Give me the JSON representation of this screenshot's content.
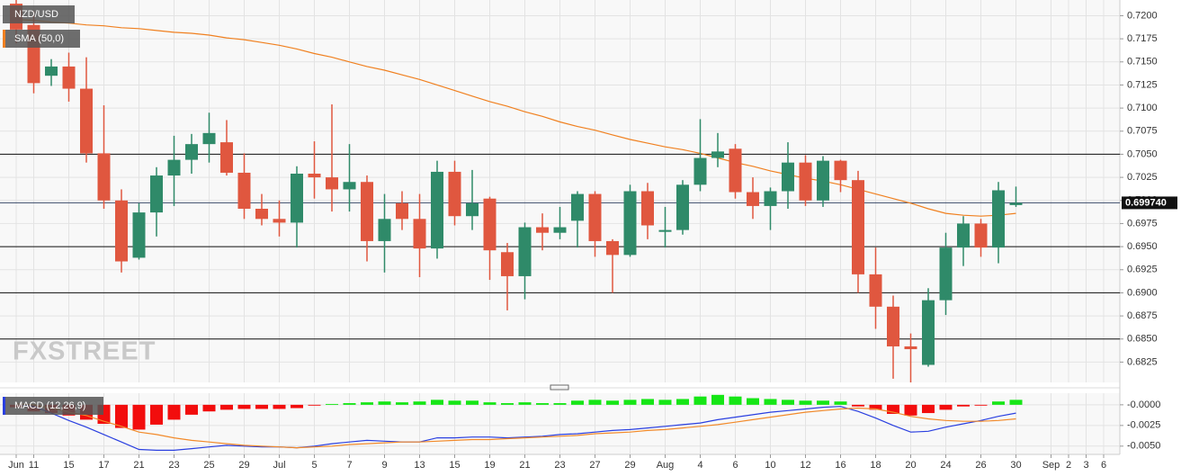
{
  "chart_data": [
    {
      "type": "candlestick",
      "name": "NZD/USD",
      "categories": [
        "Jun",
        "11",
        null,
        "15",
        null,
        "17",
        null,
        "21",
        null,
        "23",
        null,
        "25",
        null,
        "29",
        null,
        "Jul",
        null,
        "5",
        null,
        "7",
        null,
        "9",
        null,
        "13",
        null,
        "15",
        null,
        "19",
        null,
        "21",
        null,
        "23",
        null,
        "27",
        null,
        "29",
        null,
        "Aug",
        null,
        "4",
        null,
        "6",
        null,
        "10",
        null,
        "12",
        null,
        "16",
        null,
        "18",
        null,
        "20",
        null,
        "24",
        null,
        "26",
        null,
        "30",
        null,
        "Sep",
        "2",
        "3",
        "6"
      ],
      "open": [
        0.7213,
        0.719,
        0.7135,
        0.7145,
        0.7121,
        0.7051,
        0.7,
        0.6938,
        0.6987,
        0.7027,
        0.7044,
        0.7061,
        0.7063,
        0.703,
        0.6991,
        0.698,
        0.6976,
        0.7029,
        0.7025,
        0.7012,
        0.702,
        0.6956,
        0.6997,
        0.698,
        0.6948,
        0.7031,
        0.6983,
        0.7002,
        0.6944,
        0.6918,
        0.6971,
        0.6965,
        0.6978,
        0.7007,
        0.6956,
        0.6941,
        0.701,
        0.6966,
        0.6968,
        0.7017,
        0.7046,
        0.7056,
        0.7009,
        0.6994,
        0.701,
        0.7041,
        0.7,
        0.7043,
        0.7022,
        0.692,
        0.6885,
        0.6842,
        0.6822,
        0.6892,
        0.6949,
        0.6975,
        0.6949,
        0.6995,
        null,
        null,
        null,
        null,
        null
      ],
      "high": [
        0.7217,
        0.7205,
        0.7153,
        0.716,
        0.7155,
        0.7103,
        0.7012,
        0.6997,
        0.7036,
        0.707,
        0.7072,
        0.7095,
        0.7087,
        0.7051,
        0.7007,
        0.7,
        0.7037,
        0.7064,
        0.7104,
        0.7061,
        0.7027,
        0.7007,
        0.701,
        0.7007,
        0.7043,
        0.7043,
        0.7033,
        0.7004,
        0.6954,
        0.6976,
        0.6986,
        0.6993,
        0.701,
        0.701,
        0.6958,
        0.7017,
        0.7019,
        0.6993,
        0.7022,
        0.7088,
        0.7073,
        0.7061,
        0.7025,
        0.7014,
        0.7063,
        0.7049,
        0.7048,
        0.7044,
        0.7032,
        0.6949,
        0.6897,
        0.6856,
        0.6905,
        0.6965,
        0.6983,
        0.698,
        0.702,
        0.7015,
        null,
        null,
        null,
        null,
        null
      ],
      "low": [
        0.717,
        0.7116,
        0.7124,
        0.7107,
        0.7041,
        0.6991,
        0.6922,
        0.6936,
        0.6961,
        0.6994,
        0.7029,
        0.7041,
        0.7027,
        0.698,
        0.6973,
        0.6961,
        0.6949,
        0.7002,
        0.6988,
        0.6988,
        0.6934,
        0.6922,
        0.6968,
        0.6917,
        0.6937,
        0.6973,
        0.6968,
        0.6914,
        0.6881,
        0.6893,
        0.6946,
        0.6958,
        0.6949,
        0.6939,
        0.69,
        0.6939,
        0.6958,
        0.6949,
        0.6963,
        0.701,
        0.7036,
        0.7002,
        0.698,
        0.6968,
        0.6991,
        0.6994,
        0.6993,
        0.7009,
        0.69,
        0.6861,
        0.6807,
        0.6803,
        0.682,
        0.6876,
        0.6929,
        0.6939,
        0.6932,
        0.6993,
        null,
        null,
        null,
        null,
        null
      ],
      "close": [
        0.7185,
        0.7127,
        0.7145,
        0.7121,
        0.7051,
        0.7,
        0.6934,
        0.6987,
        0.7027,
        0.7044,
        0.7061,
        0.7073,
        0.703,
        0.6991,
        0.698,
        0.6976,
        0.7029,
        0.7025,
        0.7012,
        0.702,
        0.6956,
        0.698,
        0.698,
        0.6948,
        0.7031,
        0.6983,
        0.6997,
        0.6946,
        0.6918,
        0.6971,
        0.6965,
        0.6971,
        0.7007,
        0.6956,
        0.6941,
        0.701,
        0.6973,
        0.6968,
        0.7017,
        0.7046,
        0.7053,
        0.7009,
        0.6994,
        0.701,
        0.7041,
        0.7,
        0.7043,
        0.7022,
        0.692,
        0.6885,
        0.6842,
        0.6839,
        0.6892,
        0.6949,
        0.6975,
        0.6949,
        0.7011,
        0.69974,
        null,
        null,
        null,
        null,
        null
      ],
      "up_color": "#2f8a69",
      "down_color": "#e0573f",
      "overlay": {
        "name": "SMA (50,0)",
        "color": "#f08020",
        "values": [
          0.7196,
          0.7195,
          0.7193,
          0.7192,
          0.719,
          0.7189,
          0.7187,
          0.7186,
          0.7184,
          0.7182,
          0.7181,
          0.7179,
          0.7176,
          0.7174,
          0.7171,
          0.7168,
          0.7164,
          0.7159,
          0.7155,
          0.715,
          0.7145,
          0.7141,
          0.7136,
          0.7131,
          0.7125,
          0.7119,
          0.7113,
          0.7107,
          0.7102,
          0.7096,
          0.7091,
          0.7085,
          0.708,
          0.7076,
          0.7071,
          0.7066,
          0.7062,
          0.7058,
          0.7055,
          0.7051,
          0.7046,
          0.7041,
          0.7037,
          0.7032,
          0.7028,
          0.7024,
          0.7021,
          0.7017,
          0.7012,
          0.7007,
          0.7002,
          0.6997,
          0.6991,
          0.6986,
          0.6984,
          0.6983,
          0.6984,
          0.6986,
          null,
          null,
          null,
          null,
          null
        ]
      },
      "levels": [
        0.705,
        0.695,
        0.69,
        0.685
      ],
      "last_price": {
        "value": 0.69974,
        "label": "0.699740"
      },
      "ylim": [
        0.6803,
        0.7217
      ],
      "yticks": [
        {
          "value": 0.72,
          "label": "0.7200"
        },
        0.7175,
        {
          "value": 0.715,
          "label": "0.7150"
        },
        0.7125,
        {
          "value": 0.71,
          "label": "0.7100"
        },
        0.7075,
        {
          "value": 0.705,
          "label": "0.7050"
        },
        0.7025,
        {
          "value": 0.7,
          "label": "0.7000"
        },
        0.6975,
        {
          "value": 0.695,
          "label": "0.6950"
        },
        0.6925,
        {
          "value": 0.69,
          "label": "0.6900"
        },
        0.6875,
        {
          "value": 0.685,
          "label": "0.6850"
        },
        0.6825
      ],
      "grid": true,
      "watermark": "FXSTREET"
    },
    {
      "type": "macd",
      "name": "MACD (12,26,9)",
      "histogram": [
        -0.0003,
        -0.0008,
        -0.001,
        -0.0013,
        -0.0018,
        -0.0023,
        -0.0028,
        -0.003,
        -0.0024,
        -0.0018,
        -0.0012,
        -0.0008,
        -0.0006,
        -0.0005,
        -0.0005,
        -0.0005,
        -0.0004,
        -0.0001,
        0.0001,
        0.0002,
        0.0003,
        0.0004,
        0.0003,
        0.0004,
        0.0006,
        0.0005,
        0.0005,
        0.0003,
        0.0002,
        0.0003,
        0.0002,
        0.0002,
        0.0005,
        0.0006,
        0.0005,
        0.0006,
        0.0007,
        0.0006,
        0.0007,
        0.001,
        0.0012,
        0.001,
        0.0008,
        0.0007,
        0.0006,
        0.0005,
        0.0005,
        0.0004,
        -0.0002,
        -0.0006,
        -0.0011,
        -0.0013,
        -0.001,
        -0.0006,
        -0.0002,
        -0.0001,
        0.0004,
        0.0006,
        null,
        null,
        null,
        null,
        null
      ],
      "positive_color": "#16e616",
      "negative_color": "#f20d0d",
      "lines": [
        {
          "color": "#2a3fe0",
          "values": [
            0.0001,
            -0.0002,
            -0.001,
            -0.0019,
            -0.0027,
            -0.0036,
            -0.0045,
            -0.0054,
            -0.0055,
            -0.0055,
            -0.0053,
            -0.0051,
            -0.0049,
            -0.005,
            -0.0051,
            -0.0051,
            -0.0052,
            -0.005,
            -0.0047,
            -0.0045,
            -0.0043,
            -0.0044,
            -0.0045,
            -0.0045,
            -0.004,
            -0.004,
            -0.0039,
            -0.0039,
            -0.004,
            -0.0039,
            -0.0038,
            -0.0036,
            -0.0035,
            -0.0033,
            -0.0031,
            -0.003,
            -0.0028,
            -0.0026,
            -0.0024,
            -0.0022,
            -0.0018,
            -0.0015,
            -0.0012,
            -0.0009,
            -0.0007,
            -0.0005,
            -0.0003,
            -0.0002,
            -0.0008,
            -0.0016,
            -0.0025,
            -0.0033,
            -0.0032,
            -0.0027,
            -0.0023,
            -0.0019,
            -0.0014,
            -0.001,
            null,
            null,
            null,
            null,
            null
          ]
        },
        {
          "color": "#f28a2a",
          "values": [
            0.0001,
            0,
            -0.0004,
            -0.0009,
            -0.0013,
            -0.002,
            -0.0026,
            -0.0033,
            -0.0036,
            -0.004,
            -0.0043,
            -0.0045,
            -0.0047,
            -0.0049,
            -0.005,
            -0.0051,
            -0.0052,
            -0.0051,
            -0.005,
            -0.0048,
            -0.0047,
            -0.0046,
            -0.0045,
            -0.0045,
            -0.0044,
            -0.0043,
            -0.0042,
            -0.0042,
            -0.0041,
            -0.004,
            -0.0039,
            -0.0038,
            -0.0037,
            -0.0035,
            -0.0034,
            -0.0033,
            -0.0031,
            -0.003,
            -0.0028,
            -0.0026,
            -0.0024,
            -0.0021,
            -0.0018,
            -0.0015,
            -0.0012,
            -0.0009,
            -0.0007,
            -0.0005,
            -0.0004,
            -0.0005,
            -0.0009,
            -0.0014,
            -0.0017,
            -0.0019,
            -0.002,
            -0.002,
            -0.0019,
            -0.0017,
            null,
            null,
            null,
            null,
            null
          ]
        }
      ],
      "ylim": [
        -0.006,
        0.0014
      ],
      "yticks": [
        {
          "value": 0,
          "label": "-0.0000"
        },
        -0.0025,
        {
          "value": -0.005,
          "label": "-0.0050"
        }
      ],
      "grid": true
    }
  ]
}
